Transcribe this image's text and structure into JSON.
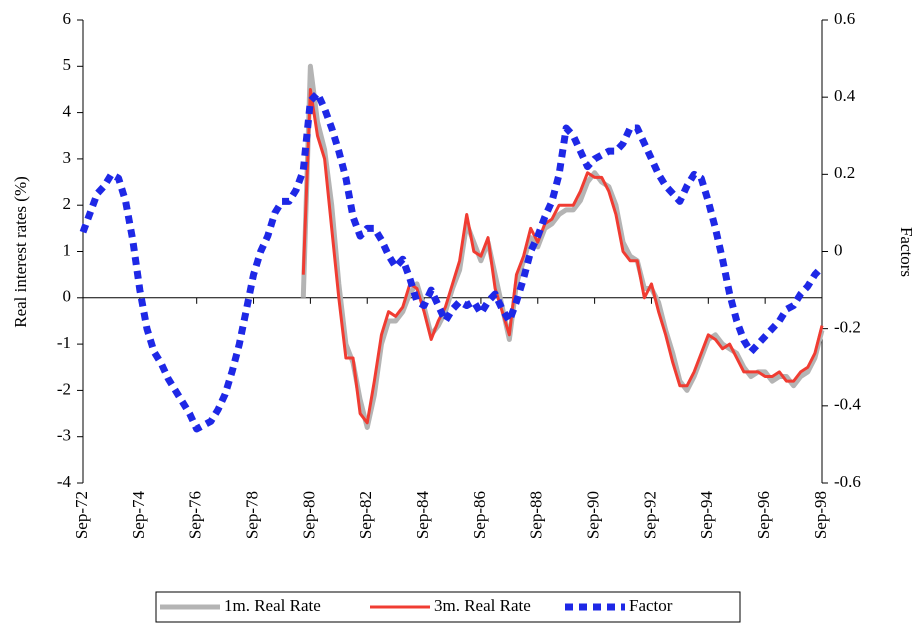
{
  "chart_data": {
    "type": "line",
    "y_label": "Real interest rates (%)",
    "y2_label": "Factors",
    "x": [
      "Sep-72",
      "Dec-72",
      "Mar-73",
      "Jun-73",
      "Sep-73",
      "Dec-73",
      "Mar-74",
      "Jun-74",
      "Sep-74",
      "Dec-74",
      "Mar-75",
      "Jun-75",
      "Sep-75",
      "Dec-75",
      "Mar-76",
      "Jun-76",
      "Sep-76",
      "Dec-76",
      "Mar-77",
      "Jun-77",
      "Sep-77",
      "Dec-77",
      "Mar-78",
      "Jun-78",
      "Sep-78",
      "Dec-78",
      "Mar-79",
      "Jun-79",
      "Sep-79",
      "Dec-79",
      "Mar-80",
      "Jun-80",
      "Sep-80",
      "Dec-80",
      "Mar-81",
      "Jun-81",
      "Sep-81",
      "Dec-81",
      "Mar-82",
      "Jun-82",
      "Sep-82",
      "Dec-82",
      "Mar-83",
      "Jun-83",
      "Sep-83",
      "Dec-83",
      "Mar-84",
      "Jun-84",
      "Sep-84",
      "Dec-84",
      "Mar-85",
      "Jun-85",
      "Sep-85",
      "Dec-85",
      "Mar-86",
      "Jun-86",
      "Sep-86",
      "Dec-86",
      "Mar-87",
      "Jun-87",
      "Sep-87",
      "Dec-87",
      "Mar-88",
      "Jun-88",
      "Sep-88",
      "Dec-88",
      "Mar-89",
      "Jun-89",
      "Sep-89",
      "Dec-89",
      "Mar-90",
      "Jun-90",
      "Sep-90",
      "Dec-90",
      "Mar-91",
      "Jun-91",
      "Sep-91",
      "Dec-91",
      "Mar-92",
      "Jun-92",
      "Sep-92",
      "Dec-92",
      "Mar-93",
      "Jun-93",
      "Sep-93",
      "Dec-93",
      "Mar-94",
      "Jun-94",
      "Sep-94",
      "Dec-94",
      "Mar-95",
      "Jun-95",
      "Sep-95",
      "Dec-95",
      "Mar-96",
      "Jun-96",
      "Sep-96",
      "Dec-96",
      "Mar-97",
      "Jun-97",
      "Sep-97",
      "Dec-97",
      "Mar-98",
      "Jun-98",
      "Sep-98"
    ],
    "xticks": [
      "Sep-72",
      "Sep-74",
      "Sep-76",
      "Sep-78",
      "Sep-80",
      "Sep-82",
      "Sep-84",
      "Sep-86",
      "Sep-88",
      "Sep-90",
      "Sep-92",
      "Sep-94",
      "Sep-96",
      "Sep-98"
    ],
    "ylim": [
      -4,
      6
    ],
    "yticks": [
      -4,
      -3,
      -2,
      -1,
      0,
      1,
      2,
      3,
      4,
      5,
      6
    ],
    "y2lim": [
      -0.6,
      0.6
    ],
    "y2ticks": [
      -0.6,
      -0.4,
      -0.2,
      0,
      0.2,
      0.4,
      0.6
    ],
    "series": [
      {
        "name": "1m. Real Rate",
        "color": "#b4b4b4",
        "line_style": "solid",
        "values": [
          null,
          null,
          null,
          null,
          null,
          null,
          null,
          null,
          null,
          null,
          null,
          null,
          null,
          null,
          null,
          null,
          null,
          null,
          null,
          null,
          null,
          null,
          null,
          null,
          null,
          null,
          null,
          null,
          null,
          null,
          null,
          0.0,
          5.0,
          3.8,
          3.2,
          2.0,
          0.3,
          -1.0,
          -1.4,
          -2.2,
          -2.8,
          -2.1,
          -1.0,
          -0.5,
          -0.5,
          -0.3,
          0.1,
          0.3,
          -0.2,
          -0.8,
          -0.6,
          -0.3,
          0.2,
          0.6,
          1.6,
          1.2,
          0.8,
          1.2,
          0.5,
          -0.2,
          -0.9,
          0.3,
          0.8,
          1.3,
          1.1,
          1.5,
          1.6,
          1.8,
          1.9,
          1.9,
          2.1,
          2.5,
          2.7,
          2.5,
          2.4,
          2.0,
          1.2,
          0.9,
          0.8,
          0.2,
          0.2,
          -0.1,
          -0.7,
          -1.2,
          -1.8,
          -2.0,
          -1.7,
          -1.3,
          -0.9,
          -0.8,
          -1.0,
          -1.1,
          -1.2,
          -1.5,
          -1.7,
          -1.6,
          -1.6,
          -1.8,
          -1.7,
          -1.7,
          -1.9,
          -1.7,
          -1.6,
          -1.3,
          -0.7
        ]
      },
      {
        "name": "3m. Real Rate",
        "color": "#f03c32",
        "line_style": "solid",
        "values": [
          null,
          null,
          null,
          null,
          null,
          null,
          null,
          null,
          null,
          null,
          null,
          null,
          null,
          null,
          null,
          null,
          null,
          null,
          null,
          null,
          null,
          null,
          null,
          null,
          null,
          null,
          null,
          null,
          null,
          null,
          null,
          0.5,
          4.5,
          3.5,
          3.0,
          1.5,
          0.0,
          -1.3,
          -1.3,
          -2.5,
          -2.7,
          -1.8,
          -0.8,
          -0.3,
          -0.4,
          -0.2,
          0.3,
          0.2,
          -0.3,
          -0.9,
          -0.5,
          -0.2,
          0.3,
          0.8,
          1.8,
          1.0,
          0.9,
          1.3,
          0.2,
          -0.3,
          -0.8,
          0.5,
          0.9,
          1.5,
          1.2,
          1.6,
          1.7,
          2.0,
          2.0,
          2.0,
          2.3,
          2.7,
          2.6,
          2.6,
          2.3,
          1.8,
          1.0,
          0.8,
          0.8,
          0.0,
          0.3,
          -0.3,
          -0.8,
          -1.4,
          -1.9,
          -1.9,
          -1.6,
          -1.2,
          -0.8,
          -0.9,
          -1.1,
          -1.0,
          -1.3,
          -1.6,
          -1.6,
          -1.6,
          -1.7,
          -1.7,
          -1.6,
          -1.8,
          -1.8,
          -1.6,
          -1.5,
          -1.2,
          -0.6
        ]
      },
      {
        "name": "Factor",
        "color": "#1e28e6",
        "line_style": "dashed",
        "axis": "y2",
        "values": [
          0.05,
          0.1,
          0.15,
          0.17,
          0.2,
          0.19,
          0.13,
          0.03,
          -0.1,
          -0.2,
          -0.26,
          -0.29,
          -0.33,
          -0.36,
          -0.39,
          -0.42,
          -0.46,
          -0.45,
          -0.44,
          -0.41,
          -0.37,
          -0.31,
          -0.24,
          -0.15,
          -0.06,
          0.0,
          0.04,
          0.1,
          0.13,
          0.13,
          0.16,
          0.21,
          0.39,
          0.41,
          0.37,
          0.32,
          0.26,
          0.19,
          0.09,
          0.04,
          0.06,
          0.06,
          0.03,
          -0.01,
          -0.04,
          -0.02,
          -0.07,
          -0.13,
          -0.14,
          -0.1,
          -0.14,
          -0.18,
          -0.15,
          -0.13,
          -0.14,
          -0.13,
          -0.16,
          -0.13,
          -0.11,
          -0.15,
          -0.18,
          -0.13,
          -0.07,
          0.0,
          0.04,
          0.09,
          0.13,
          0.2,
          0.32,
          0.3,
          0.26,
          0.22,
          0.24,
          0.25,
          0.26,
          0.26,
          0.28,
          0.32,
          0.32,
          0.28,
          0.24,
          0.2,
          0.17,
          0.15,
          0.13,
          0.17,
          0.2,
          0.19,
          0.13,
          0.06,
          -0.02,
          -0.11,
          -0.18,
          -0.23,
          -0.26,
          -0.24,
          -0.22,
          -0.2,
          -0.18,
          -0.15,
          -0.14,
          -0.11,
          -0.09,
          -0.06,
          -0.04
        ]
      }
    ]
  }
}
